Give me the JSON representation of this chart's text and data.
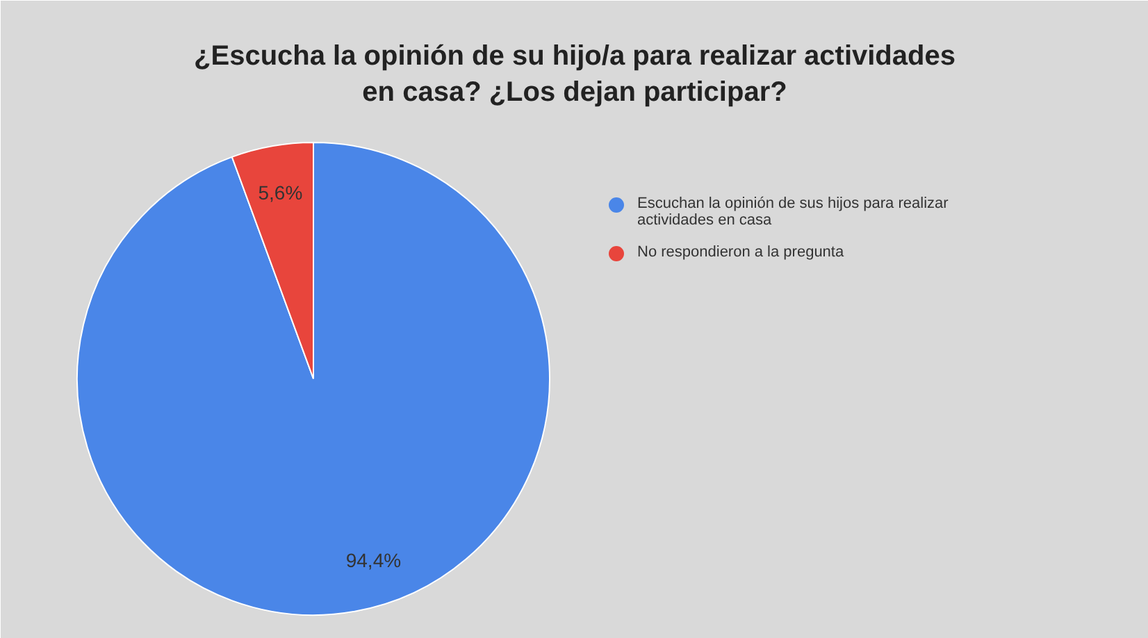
{
  "chart_data": {
    "type": "pie",
    "title": "¿Escucha la opinión de su hijo/a para realizar actividades en casa? ¿Los dejan participar?",
    "categories": [
      "Escuchan la opinión de sus hijos para realizar actividades en casa",
      "No respondieron a la pregunta"
    ],
    "values": [
      94.4,
      5.6
    ],
    "colors": [
      "#4a86e8",
      "#e8453c"
    ],
    "value_labels": [
      "94,4%",
      "5,6%"
    ],
    "legend": "right"
  }
}
